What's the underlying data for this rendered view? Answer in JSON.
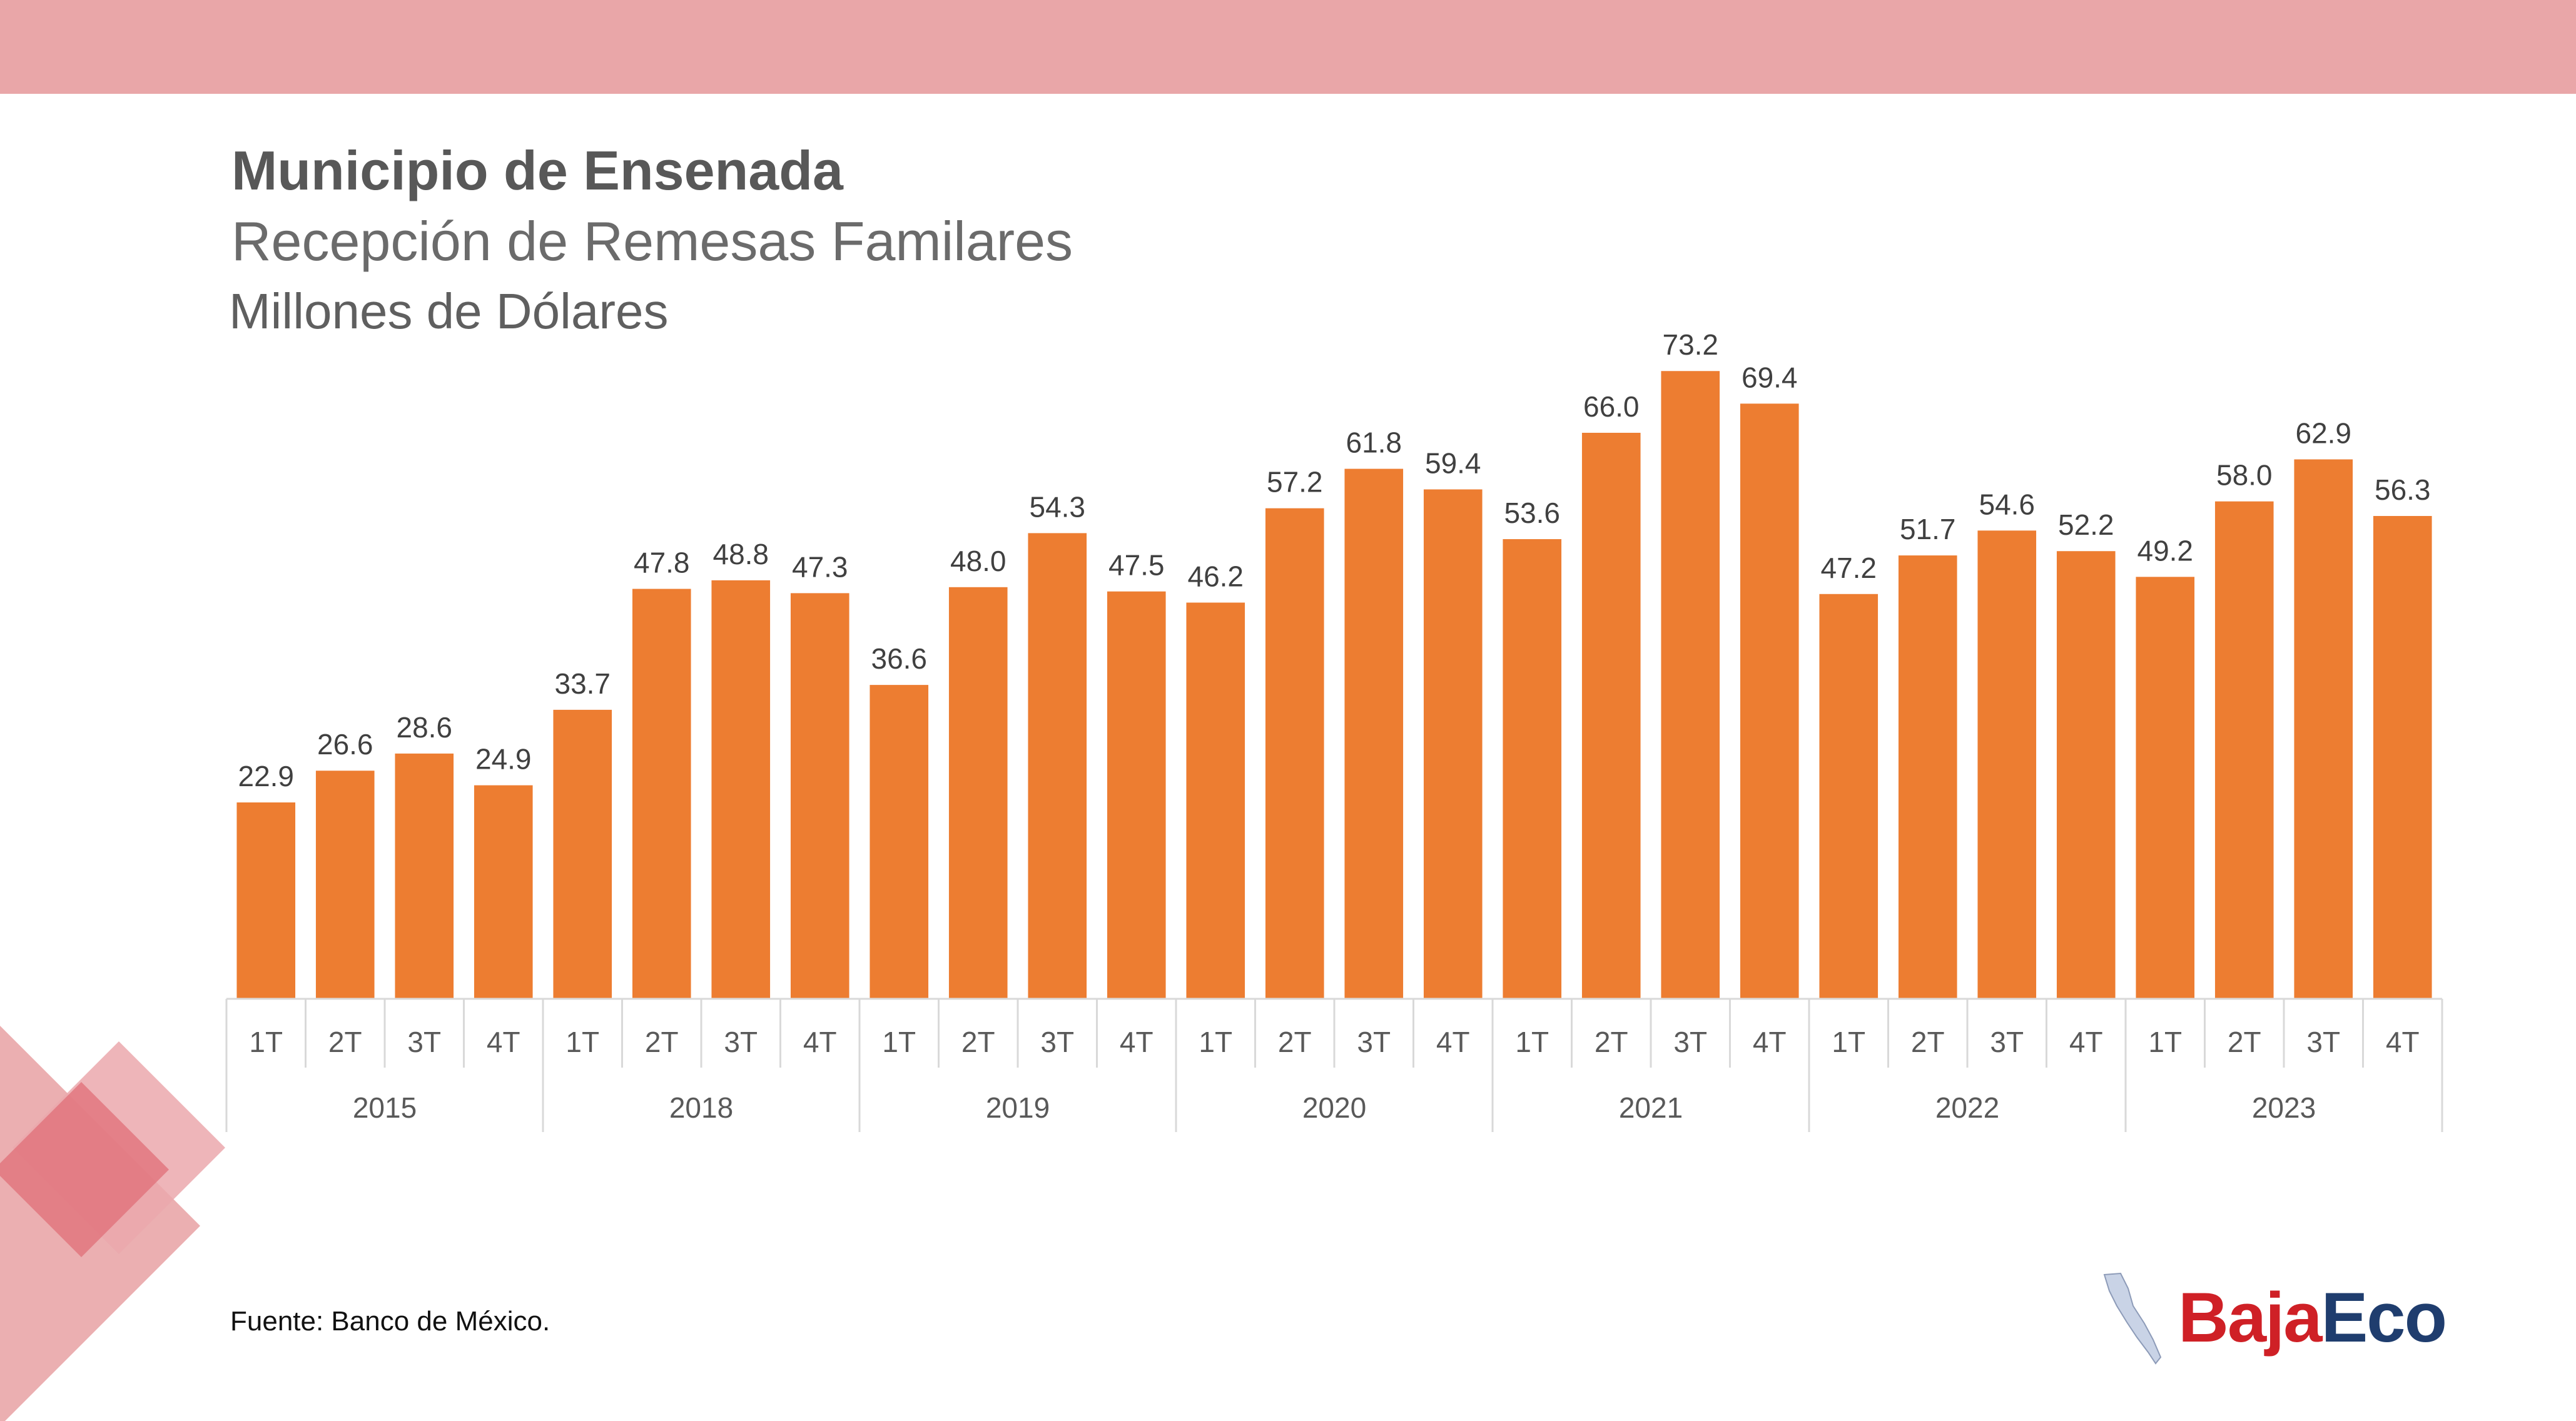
{
  "colors": {
    "top_band": "#e9a6a8",
    "bar": "#ed7d31",
    "deco_dark": "#e06f78",
    "deco_light": "#eba8ad",
    "grid": "#d9d9d9",
    "text": "#404040"
  },
  "header": {
    "title": "Municipio de Ensenada",
    "subtitle": "Recepción de Remesas Familares",
    "unit": "Millones de Dólares"
  },
  "footer": {
    "source": "Fuente: Banco de México."
  },
  "logo": {
    "text_part1": "Baja",
    "text_part2": "Eco"
  },
  "chart_data": {
    "type": "bar",
    "title": "Municipio de Ensenada",
    "subtitle": "Recepción de Remesas Familares",
    "ylabel": "Millones de Dólares",
    "xlabel": "",
    "ylim": [
      0,
      80
    ],
    "grid": false,
    "legend": "none",
    "groups": [
      {
        "year": "2015",
        "quarters": [
          "1T",
          "2T",
          "3T",
          "4T"
        ],
        "values": [
          22.9,
          26.6,
          28.6,
          24.9
        ]
      },
      {
        "year": "2018",
        "quarters": [
          "1T",
          "2T",
          "3T",
          "4T"
        ],
        "values": [
          33.7,
          47.8,
          48.8,
          47.3
        ]
      },
      {
        "year": "2019",
        "quarters": [
          "1T",
          "2T",
          "3T",
          "4T"
        ],
        "values": [
          36.6,
          48.0,
          54.3,
          47.5
        ]
      },
      {
        "year": "2020",
        "quarters": [
          "1T",
          "2T",
          "3T",
          "4T"
        ],
        "values": [
          46.2,
          57.2,
          61.8,
          59.4
        ]
      },
      {
        "year": "2021",
        "quarters": [
          "1T",
          "2T",
          "3T",
          "4T"
        ],
        "values": [
          53.6,
          66.0,
          73.2,
          69.4
        ]
      },
      {
        "year": "2022",
        "quarters": [
          "1T",
          "2T",
          "3T",
          "4T"
        ],
        "values": [
          47.2,
          51.7,
          54.6,
          52.2
        ]
      },
      {
        "year": "2023",
        "quarters": [
          "1T",
          "2T",
          "3T",
          "4T"
        ],
        "values": [
          49.2,
          58.0,
          62.9,
          56.3
        ]
      }
    ]
  }
}
